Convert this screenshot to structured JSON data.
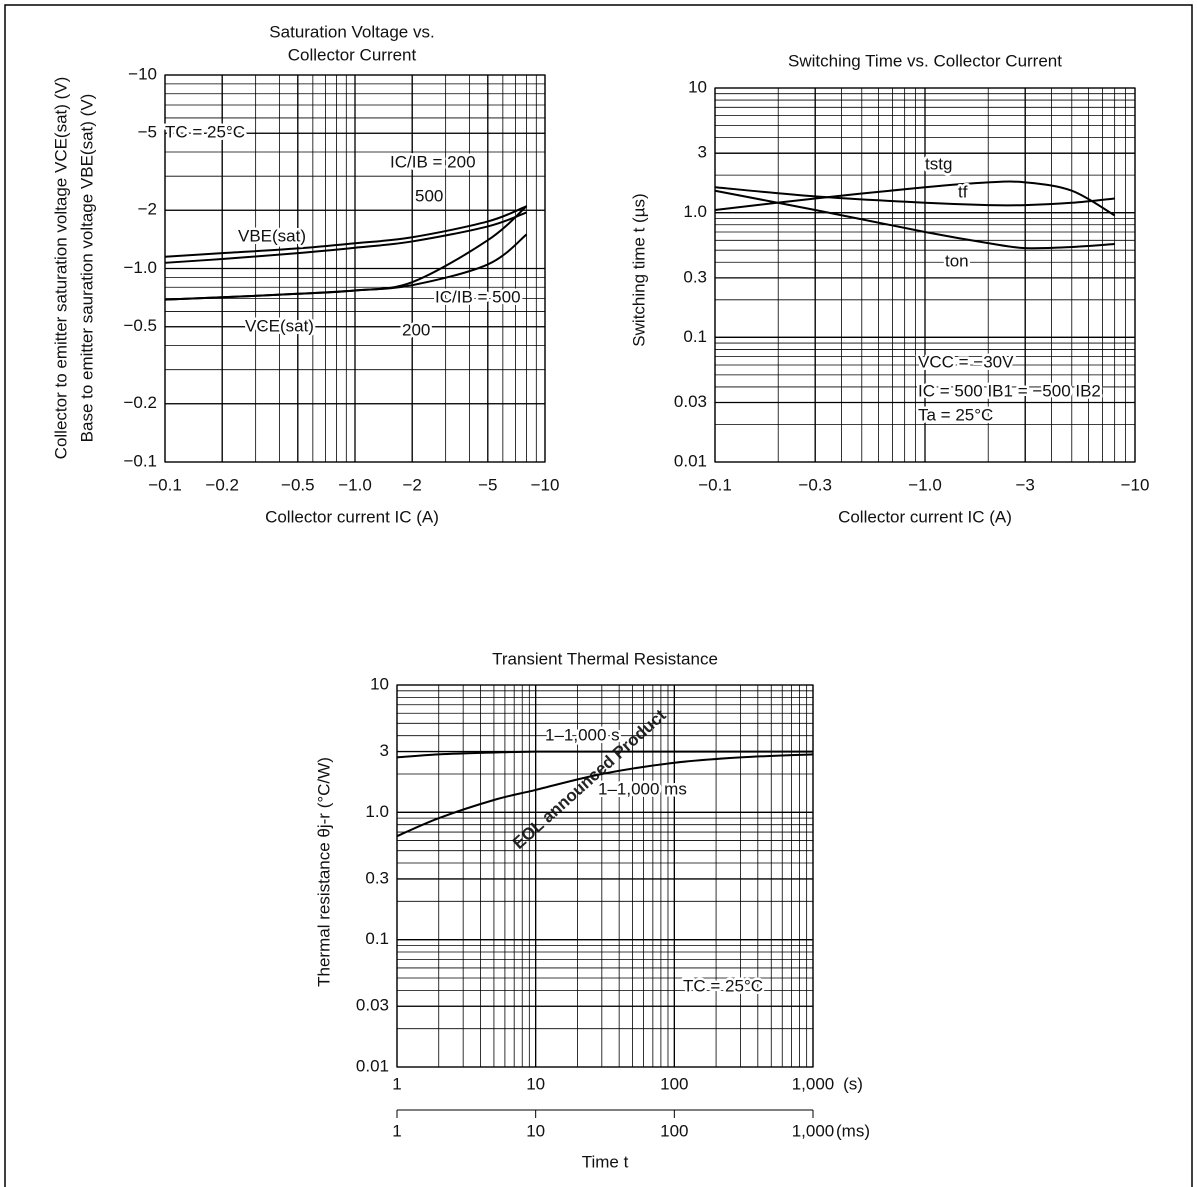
{
  "watermark": "EOL announced Product",
  "chart_data": [
    {
      "type": "line",
      "title": [
        "Saturation Voltage vs.",
        "Collector Current"
      ],
      "x_label": "Collector current IC (A)",
      "y_label": [
        "Collector to emitter saturation voltage VCE(sat) (V)",
        "Base to emitter sauration voltage VBE(sat) (V)"
      ],
      "log_scale": true,
      "grid": true,
      "x": [
        -0.1,
        -0.2,
        -0.5,
        -1,
        -2,
        -5,
        -8
      ],
      "xlim": [
        -0.1,
        -10
      ],
      "ylim": [
        -0.1,
        -10
      ],
      "xticks": [
        {
          "value": -0.1,
          "label": "−0.1"
        },
        {
          "value": -0.2,
          "label": "−0.2"
        },
        {
          "value": -0.5,
          "label": "−0.5"
        },
        {
          "value": -1,
          "label": "−1.0"
        },
        {
          "value": -2,
          "label": "−2"
        },
        {
          "value": -5,
          "label": "−5"
        },
        {
          "value": -10,
          "label": "−10"
        }
      ],
      "yticks": [
        {
          "value": -10,
          "label": "−10"
        },
        {
          "value": -5,
          "label": "−5"
        },
        {
          "value": -2,
          "label": "−2"
        },
        {
          "value": -1,
          "label": "−1.0"
        },
        {
          "value": -0.5,
          "label": "−0.5"
        },
        {
          "value": -0.2,
          "label": "−0.2"
        },
        {
          "value": -0.1,
          "label": "−0.1"
        }
      ],
      "series": [
        {
          "name": "VBE(sat) IC/IB = 200",
          "color": "#000000",
          "values": [
            -1.15,
            -1.2,
            -1.27,
            -1.35,
            -1.45,
            -1.75,
            -2.1
          ]
        },
        {
          "name": "VBE(sat) IC/IB = 500",
          "color": "#000000",
          "values": [
            -1.07,
            -1.12,
            -1.2,
            -1.28,
            -1.38,
            -1.65,
            -1.95
          ]
        },
        {
          "name": "VCE(sat) IC/IB = 200",
          "color": "#000000",
          "values": [
            -0.69,
            -0.71,
            -0.74,
            -0.77,
            -0.85,
            -1.4,
            -2.1
          ]
        },
        {
          "name": "VCE(sat) IC/IB = 500",
          "color": "#000000",
          "values": [
            -0.69,
            -0.71,
            -0.74,
            -0.77,
            -0.82,
            -1.05,
            -1.5
          ]
        }
      ],
      "annotations": [
        "TC = 25°C",
        "IC/IB = 200",
        "500",
        "VBE(sat)",
        "VCE(sat)",
        "IC/IB = 500",
        "200"
      ]
    },
    {
      "type": "line",
      "title": [
        "Switching Time vs. Collector Current"
      ],
      "x_label": "Collector current IC (A)",
      "y_label": [
        "Switching time t (µs)"
      ],
      "log_scale": true,
      "grid": true,
      "x": [
        -0.1,
        -0.3,
        -1,
        -2,
        -3,
        -5,
        -8
      ],
      "xlim": [
        -0.1,
        -10
      ],
      "ylim": [
        0.01,
        10
      ],
      "xticks": [
        {
          "value": -0.1,
          "label": "−0.1"
        },
        {
          "value": -0.3,
          "label": "−0.3"
        },
        {
          "value": -1,
          "label": "−1.0"
        },
        {
          "value": -3,
          "label": "−3"
        },
        {
          "value": -10,
          "label": "−10"
        }
      ],
      "yticks": [
        10,
        3,
        {
          "value": 1,
          "label": "1.0"
        },
        0.3,
        0.1,
        0.03,
        0.01
      ],
      "series": [
        {
          "name": "tstg",
          "color": "#000000",
          "values": [
            1.05,
            1.3,
            1.6,
            1.75,
            1.75,
            1.5,
            0.95
          ]
        },
        {
          "name": "tf",
          "color": "#000000",
          "values": [
            1.6,
            1.35,
            1.2,
            1.15,
            1.15,
            1.2,
            1.3
          ]
        },
        {
          "name": "ton",
          "color": "#000000",
          "values": [
            1.5,
            1.05,
            0.7,
            0.57,
            0.52,
            0.53,
            0.56
          ]
        }
      ],
      "annotations": [
        "VCC = −30V",
        "IC = 500 IB1 = −500 IB2",
        "Ta = 25°C"
      ]
    },
    {
      "type": "line",
      "title": [
        "Transient Thermal Resistance"
      ],
      "x_label": "Time t",
      "y_label": [
        "Thermal resistance θj-r (°C/W)"
      ],
      "x_units": [
        "(s)",
        "(ms)"
      ],
      "log_scale": true,
      "grid": true,
      "x": [
        1,
        2,
        5,
        10,
        30,
        100,
        300,
        1000
      ],
      "xlim": [
        1,
        1000
      ],
      "ylim": [
        0.01,
        10
      ],
      "xticks": [
        1,
        10,
        100,
        {
          "value": 1000,
          "label": "1,000"
        }
      ],
      "yticks": [
        10,
        3,
        {
          "value": 1,
          "label": "1.0"
        },
        0.3,
        0.1,
        0.03,
        0.01
      ],
      "series": [
        {
          "name": "1–1,000 s",
          "color": "#000000",
          "values": [
            2.7,
            2.85,
            2.95,
            3.0,
            3.0,
            3.0,
            3.0,
            3.0
          ]
        },
        {
          "name": "1–1,000 ms",
          "color": "#000000",
          "values": [
            0.65,
            0.9,
            1.25,
            1.5,
            2.0,
            2.45,
            2.7,
            2.85
          ]
        }
      ],
      "annotations": [
        "TC = 25°C"
      ]
    }
  ]
}
